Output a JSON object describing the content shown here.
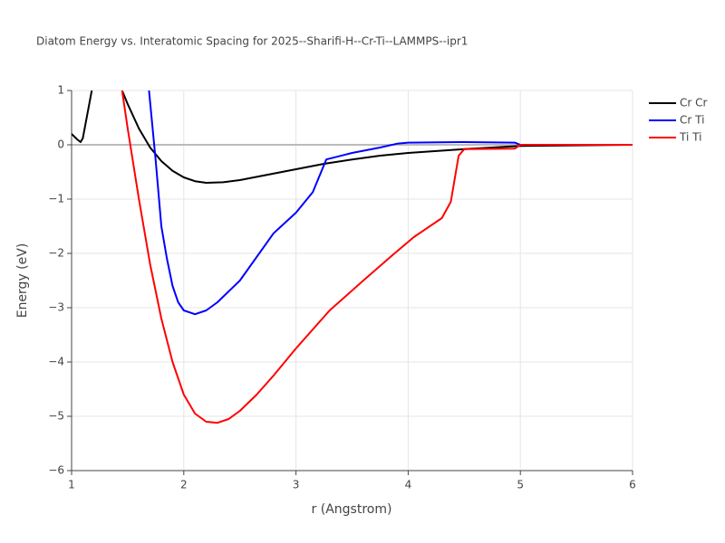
{
  "chart_data": {
    "type": "line",
    "title": "Diatom Energy vs. Interatomic Spacing for 2025--Sharifi-H--Cr-Ti--LAMMPS--ipr1",
    "xlabel": "r (Angstrom)",
    "ylabel": "Energy (eV)",
    "xlim": [
      1,
      6
    ],
    "ylim": [
      -6,
      1
    ],
    "xticks": [
      1,
      2,
      3,
      4,
      5,
      6
    ],
    "yticks": [
      {
        "value": -6,
        "label": "−6"
      },
      {
        "value": -5,
        "label": "−5"
      },
      {
        "value": -4,
        "label": "−4"
      },
      {
        "value": -3,
        "label": "−3"
      },
      {
        "value": -2,
        "label": "−2"
      },
      {
        "value": -1,
        "label": "−1"
      },
      0,
      1
    ],
    "grid": true,
    "series": [
      {
        "name": "Cr Cr",
        "color": "#000000",
        "x": [
          1,
          1.05,
          1.08,
          1.1,
          1.18,
          1.3,
          1.45,
          1.5,
          1.6,
          1.7,
          1.8,
          1.9,
          2.0,
          2.1,
          2.2,
          2.35,
          2.5,
          2.75,
          3.0,
          3.25,
          3.5,
          3.75,
          4.0,
          4.5,
          5.0,
          6
        ],
        "values": [
          0.2,
          0.1,
          0.05,
          0.12,
          1.0,
          null,
          1.0,
          0.75,
          0.3,
          -0.05,
          -0.3,
          -0.48,
          -0.6,
          -0.67,
          -0.7,
          -0.69,
          -0.65,
          -0.55,
          -0.45,
          -0.35,
          -0.27,
          -0.2,
          -0.15,
          -0.08,
          -0.02,
          0
        ]
      },
      {
        "name": "Cr Ti",
        "color": "#0000ff",
        "x": [
          1.69,
          1.75,
          1.8,
          1.85,
          1.9,
          1.95,
          2.0,
          2.1,
          2.2,
          2.3,
          2.5,
          2.8,
          3.0,
          3.15,
          3.27,
          3.5,
          3.75,
          3.9,
          4.0,
          4.5,
          4.95,
          5.0
        ],
        "values": [
          1,
          -0.3,
          -1.5,
          -2.1,
          -2.6,
          -2.9,
          -3.05,
          -3.12,
          -3.05,
          -2.9,
          -2.5,
          -1.63,
          -1.25,
          -0.87,
          -0.27,
          -0.15,
          -0.05,
          0.02,
          0.04,
          0.05,
          0.04,
          0
        ]
      },
      {
        "name": "Ti Ti",
        "color": "#ff0000",
        "x": [
          1.45,
          1.5,
          1.6,
          1.7,
          1.8,
          1.9,
          2.0,
          2.1,
          2.2,
          2.3,
          2.4,
          2.5,
          2.65,
          2.8,
          3.0,
          3.3,
          3.6,
          3.85,
          4.05,
          4.3,
          4.38,
          4.45,
          4.5,
          4.95,
          5.0,
          6
        ],
        "values": [
          1,
          0.3,
          -1,
          -2.2,
          -3.2,
          -4,
          -4.6,
          -4.95,
          -5.1,
          -5.12,
          -5.05,
          -4.9,
          -4.6,
          -4.25,
          -3.75,
          -3.05,
          -2.5,
          -2.05,
          -1.7,
          -1.35,
          -1.05,
          -0.2,
          -0.08,
          -0.07,
          0,
          0
        ]
      }
    ]
  }
}
